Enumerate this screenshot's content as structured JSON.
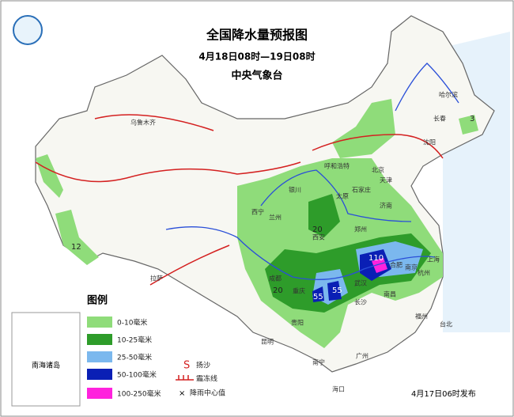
{
  "header": {
    "title": "全国降水量预报图",
    "period": "4月18日08时—19日08时",
    "issuer": "中央气象台"
  },
  "cities": [
    "乌鲁木齐",
    "哈尔滨",
    "长春",
    "沈阳",
    "呼和浩特",
    "北京",
    "天津",
    "银川",
    "太原",
    "石家庄",
    "济南",
    "西宁",
    "兰州",
    "西安",
    "郑州",
    "拉萨",
    "成都",
    "重庆",
    "合肥",
    "南京",
    "上海",
    "杭州",
    "武汉",
    "长沙",
    "南昌",
    "贵阳",
    "昆明",
    "福州",
    "台北",
    "南宁",
    "广州",
    "海口"
  ],
  "rain_centers": [
    110,
    55,
    55,
    20,
    20,
    12,
    3
  ],
  "legend": {
    "title": "图例",
    "items": [
      "0-10毫米",
      "10-25毫米",
      "25-50毫米",
      "50-100毫米",
      "100-250毫米"
    ],
    "symbols": [
      "扬沙",
      "霜冻线",
      "降雨中心值"
    ]
  },
  "inset": "南海诸岛",
  "footer": "4月17日06时发布"
}
